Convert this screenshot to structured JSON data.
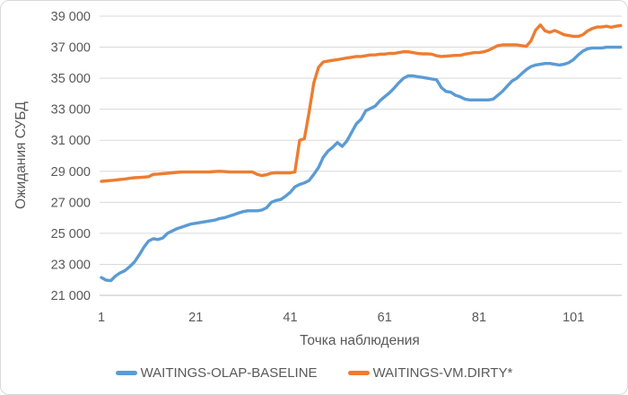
{
  "chart_data": {
    "type": "line",
    "title": "",
    "xlabel": "Точка наблюдения",
    "ylabel": "Ожидания СУБД",
    "grid": true,
    "legend_position": "bottom",
    "xlim": [
      1,
      111
    ],
    "ylim": [
      21000,
      39000
    ],
    "x_ticks": [
      1,
      21,
      41,
      61,
      81,
      101
    ],
    "y_ticks": [
      21000,
      23000,
      25000,
      27000,
      29000,
      31000,
      33000,
      35000,
      37000,
      39000
    ],
    "y_tick_labels": [
      "21 000",
      "23 000",
      "25 000",
      "27 000",
      "29 000",
      "31 000",
      "33 000",
      "35 000",
      "37 000",
      "39 000"
    ],
    "axis_color": "#bfbfbf",
    "grid_color": "#d9d9d9",
    "text_color": "#595959",
    "series": [
      {
        "name": "WAITINGS-OLAP-BASELINE",
        "color": "#5b9bd5",
        "values": [
          22150,
          21980,
          21950,
          22250,
          22450,
          22600,
          22850,
          23150,
          23600,
          24100,
          24500,
          24650,
          24600,
          24700,
          25000,
          25150,
          25300,
          25400,
          25500,
          25600,
          25650,
          25700,
          25750,
          25800,
          25850,
          25950,
          26000,
          26100,
          26200,
          26300,
          26400,
          26450,
          26450,
          26450,
          26500,
          26650,
          27000,
          27120,
          27180,
          27390,
          27640,
          28000,
          28150,
          28250,
          28400,
          28800,
          29250,
          29900,
          30300,
          30550,
          30850,
          30600,
          30950,
          31500,
          32050,
          32350,
          32900,
          33050,
          33200,
          33550,
          33800,
          34050,
          34350,
          34700,
          35000,
          35150,
          35150,
          35100,
          35050,
          35000,
          34950,
          34900,
          34400,
          34150,
          34100,
          33900,
          33800,
          33650,
          33600,
          33600,
          33600,
          33600,
          33600,
          33650,
          33900,
          34170,
          34500,
          34820,
          35000,
          35280,
          35550,
          35750,
          35850,
          35900,
          35950,
          35950,
          35900,
          35850,
          35900,
          36000,
          36200,
          36500,
          36750,
          36900,
          36950,
          36950,
          36950,
          37000,
          37000,
          37000,
          37000
        ]
      },
      {
        "name": "WAITINGS-VM.DIRTY*",
        "color": "#ed7d31",
        "values": [
          28350,
          28380,
          28400,
          28430,
          28470,
          28500,
          28550,
          28580,
          28600,
          28620,
          28650,
          28800,
          28820,
          28850,
          28870,
          28900,
          28930,
          28950,
          28950,
          28950,
          28950,
          28950,
          28950,
          28960,
          28980,
          29000,
          28980,
          28960,
          28950,
          28950,
          28950,
          28950,
          28950,
          28800,
          28720,
          28780,
          28880,
          28900,
          28900,
          28900,
          28900,
          28950,
          31000,
          31100,
          32800,
          34700,
          35700,
          36050,
          36100,
          36150,
          36200,
          36250,
          36300,
          36350,
          36400,
          36400,
          36450,
          36500,
          36500,
          36550,
          36550,
          36600,
          36600,
          36650,
          36700,
          36700,
          36650,
          36600,
          36570,
          36570,
          36550,
          36450,
          36400,
          36420,
          36450,
          36470,
          36470,
          36550,
          36600,
          36650,
          36650,
          36700,
          36800,
          36950,
          37100,
          37150,
          37150,
          37150,
          37150,
          37100,
          37050,
          37400,
          38100,
          38430,
          38050,
          37950,
          38080,
          37950,
          37800,
          37750,
          37700,
          37700,
          37800,
          38050,
          38200,
          38300,
          38300,
          38350,
          38280,
          38350,
          38400
        ]
      }
    ]
  },
  "legend": {
    "items": [
      {
        "label": "WAITINGS-OLAP-BASELINE"
      },
      {
        "label": "WAITINGS-VM.DIRTY*"
      }
    ]
  }
}
